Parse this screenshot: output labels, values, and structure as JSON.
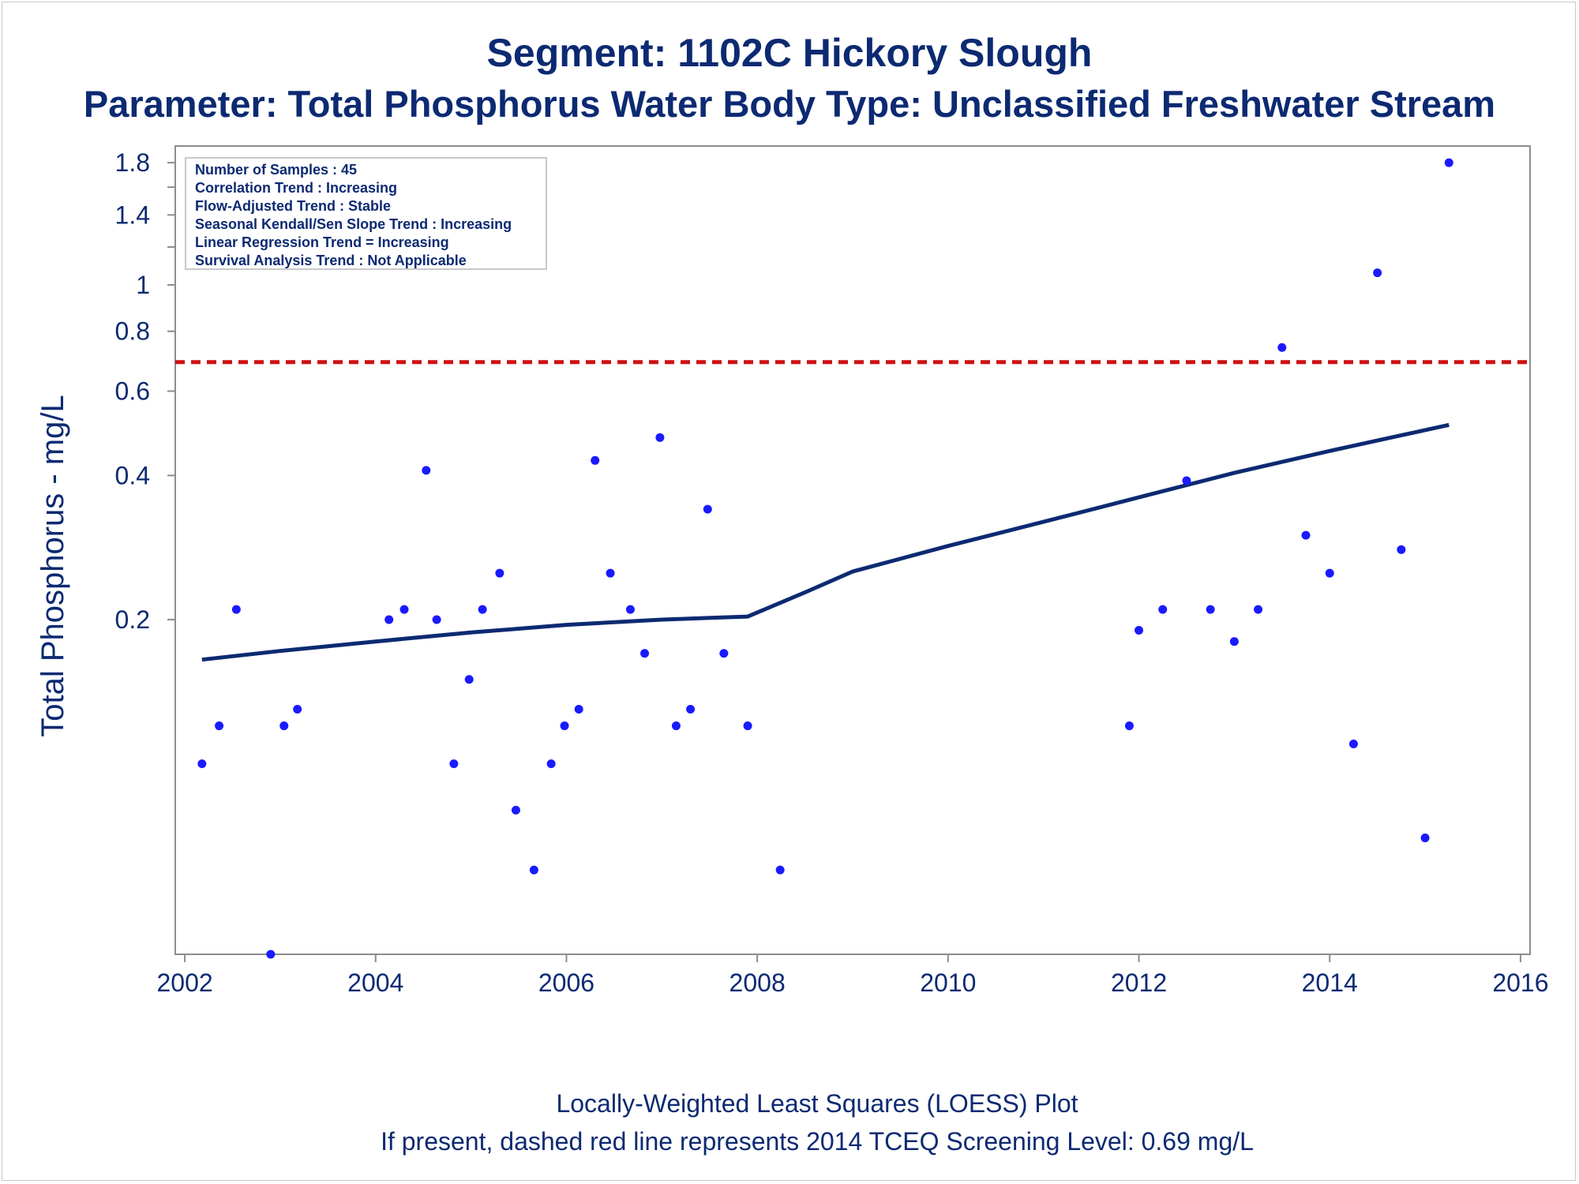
{
  "title": "Segment: 1102C  Hickory Slough",
  "subtitle": "Parameter: Total Phosphorus   Water Body Type: Unclassified Freshwater Stream",
  "footnote1": "Locally-Weighted Least Squares (LOESS) Plot",
  "footnote2": "If present, dashed red line represents 2014 TCEQ Screening Level: 0.69 mg/L",
  "stats_box": [
    "Number of Samples : 45",
    "Correlation Trend : Increasing",
    "Flow-Adjusted Trend : Stable",
    "Seasonal Kendall/Sen Slope Trend : Increasing",
    "Linear Regression Trend = Increasing",
    "Survival Analysis Trend : Not Applicable"
  ],
  "colors": {
    "text": "#0c2a72",
    "points": "#1a1aff",
    "loess": "#0c2a72",
    "screening_line": "#cc1111",
    "axis": "#8c8c8c"
  },
  "chart_data": {
    "type": "scatter",
    "title": "Segment: 1102C  Hickory Slough",
    "subtitle": "Parameter: Total Phosphorus   Water Body Type: Unclassified Freshwater Stream",
    "xlabel": "",
    "ylabel": "Total Phosphorus - mg/L",
    "x_scale": "linear",
    "y_scale": "log",
    "xlim": [
      2001.9,
      2016.1
    ],
    "ylim": [
      0.04,
      1.95
    ],
    "x_ticks": [
      2002,
      2004,
      2006,
      2008,
      2010,
      2012,
      2014,
      2016
    ],
    "y_ticks_labeled": [
      0.2,
      0.4,
      0.6,
      0.8,
      1,
      1.4,
      1.8
    ],
    "y_ticks_minor": [
      1.2,
      1.6
    ],
    "screening_level": 0.69,
    "series": [
      {
        "type": "scatter",
        "x": [
          2002.18,
          2002.36,
          2002.54,
          2002.9,
          2003.04,
          2003.18,
          2004.14,
          2004.3,
          2004.53,
          2004.64,
          2004.82,
          2004.98,
          2005.12,
          2005.3,
          2005.47,
          2005.66,
          2005.84,
          2005.98,
          2006.13,
          2006.3,
          2006.46,
          2006.67,
          2006.82,
          2006.98,
          2007.15,
          2007.3,
          2007.48,
          2007.65,
          2007.9,
          2008.24,
          2011.9,
          2012.0,
          2012.25,
          2012.5,
          2012.75,
          2013.0,
          2013.25,
          2013.5,
          2013.75,
          2014.0,
          2014.25,
          2014.5,
          2014.75,
          2015.0,
          2015.25
        ],
        "y": [
          0.1,
          0.12,
          0.21,
          0.04,
          0.12,
          0.13,
          0.2,
          0.21,
          0.41,
          0.2,
          0.1,
          0.15,
          0.21,
          0.25,
          0.08,
          0.06,
          0.1,
          0.12,
          0.13,
          0.43,
          0.25,
          0.21,
          0.17,
          0.48,
          0.12,
          0.13,
          0.34,
          0.17,
          0.12,
          0.06,
          0.12,
          0.19,
          0.21,
          0.39,
          0.21,
          0.18,
          0.21,
          0.74,
          0.3,
          0.25,
          0.11,
          1.06,
          0.28,
          0.07,
          1.8
        ]
      },
      {
        "type": "line",
        "x": [
          2002.18,
          2003.0,
          2004.0,
          2005.0,
          2006.0,
          2007.0,
          2007.9,
          2008.5,
          2009.0,
          2010.0,
          2011.0,
          2012.0,
          2013.0,
          2014.0,
          2015.25
        ],
        "y": [
          0.165,
          0.172,
          0.18,
          0.188,
          0.195,
          0.2,
          0.203,
          0.228,
          0.252,
          0.285,
          0.32,
          0.36,
          0.405,
          0.45,
          0.51
        ]
      }
    ]
  }
}
